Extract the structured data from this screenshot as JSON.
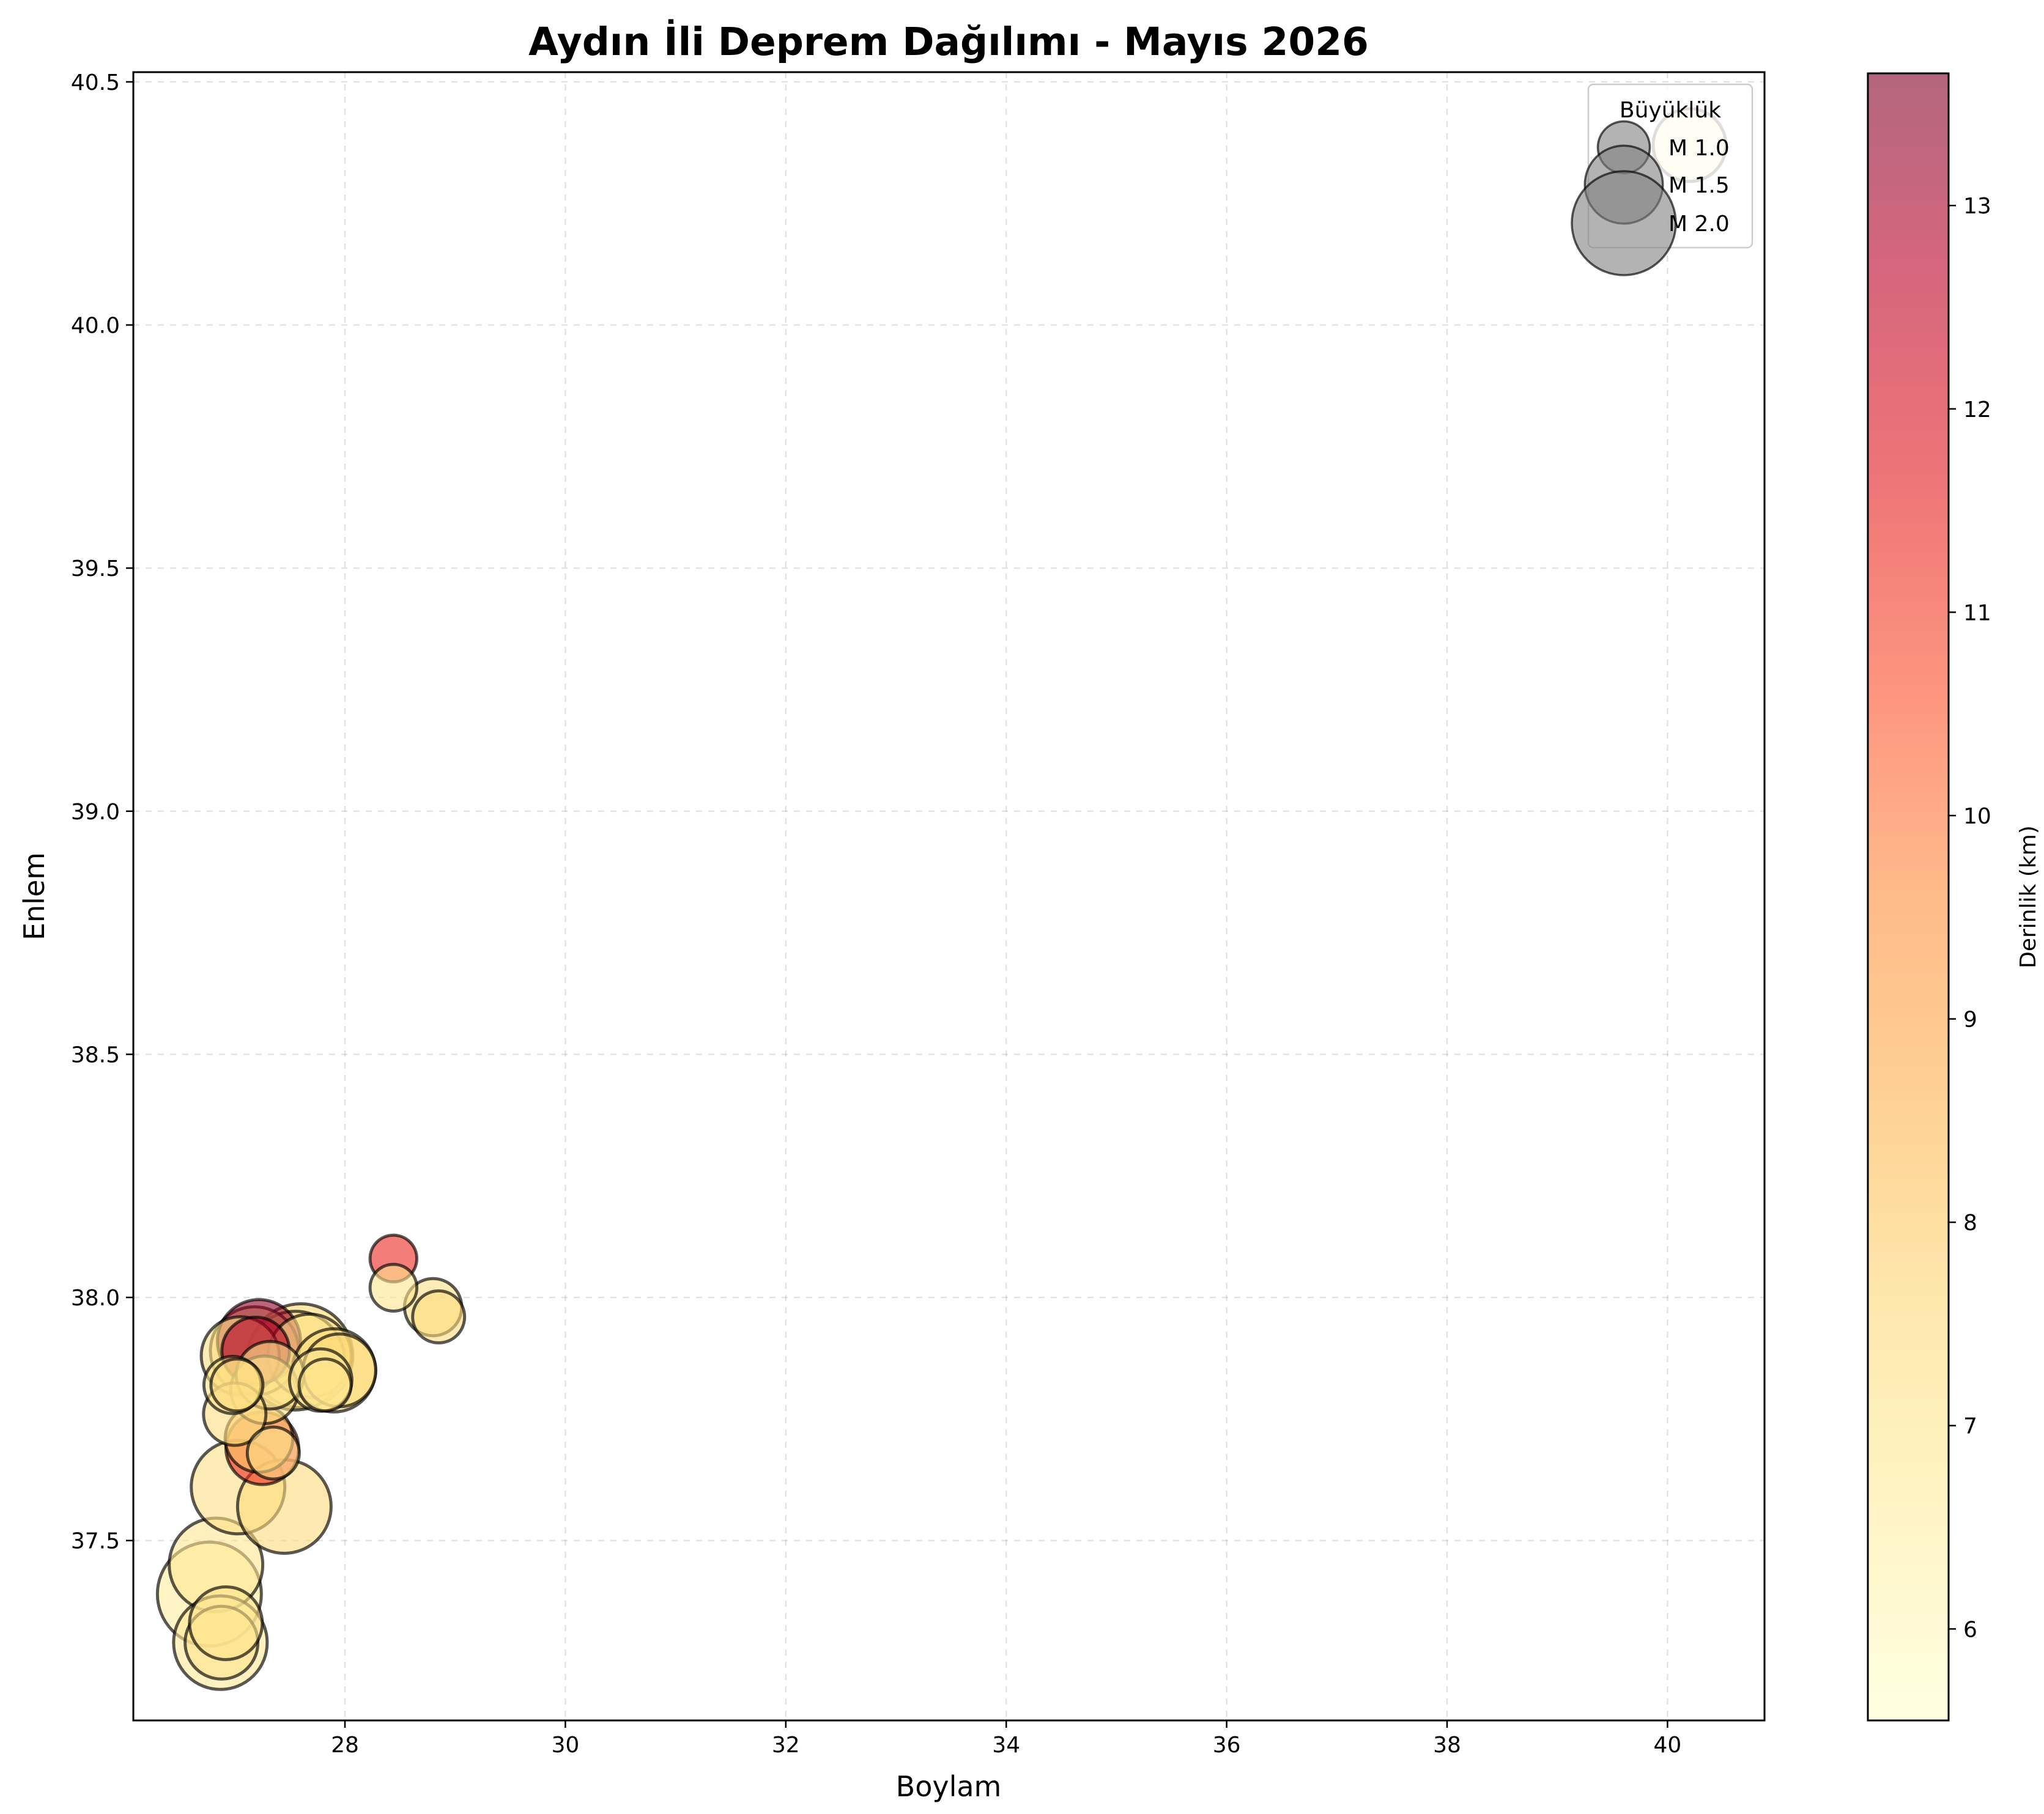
{
  "chart_data": {
    "type": "scatter",
    "title": "Aydın İli Deprem Dağılımı - Mayıs 2026",
    "xlabel": "Boylam",
    "ylabel": "Enlem",
    "xlim": [
      26.08,
      40.88
    ],
    "ylim": [
      37.13,
      40.52
    ],
    "xticks": [
      28,
      30,
      32,
      34,
      36,
      38,
      40
    ],
    "yticks": [
      37.5,
      38.0,
      38.5,
      39.0,
      39.5,
      40.0,
      40.5
    ],
    "xtick_labels": [
      "28",
      "30",
      "32",
      "34",
      "36",
      "38",
      "40"
    ],
    "ytick_labels": [
      "37.5",
      "38.0",
      "38.5",
      "39.0",
      "39.5",
      "40.0",
      "40.5"
    ],
    "grid": true,
    "colorbar": {
      "label": "Derinlik (km)",
      "range": [
        5.55,
        13.65
      ],
      "ticks": [
        6,
        7,
        8,
        9,
        10,
        11,
        12,
        13
      ],
      "tick_labels": [
        "6",
        "7",
        "8",
        "9",
        "10",
        "11",
        "12",
        "13"
      ],
      "colormap": "YlOrRd",
      "alpha": 0.6
    },
    "legend": {
      "title": "Büyüklük",
      "position": "top-right",
      "entries": [
        {
          "label": "M 1.0",
          "magnitude": 1.0
        },
        {
          "label": "M 1.5",
          "magnitude": 1.5
        },
        {
          "label": "M 2.0",
          "magnitude": 2.0
        }
      ]
    },
    "points": [
      {
        "lon": 40.2,
        "lat": 40.37,
        "mag": 1.4,
        "depth": 6.5
      },
      {
        "lon": 26.77,
        "lat": 37.39,
        "mag": 2.0,
        "depth": 6.6
      },
      {
        "lon": 26.83,
        "lat": 37.45,
        "mag": 1.8,
        "depth": 6.9
      },
      {
        "lon": 26.87,
        "lat": 37.29,
        "mag": 1.8,
        "depth": 6.8
      },
      {
        "lon": 26.88,
        "lat": 37.29,
        "mag": 1.4,
        "depth": 7.0
      },
      {
        "lon": 26.92,
        "lat": 37.33,
        "mag": 1.4,
        "depth": 7.0
      },
      {
        "lon": 27.03,
        "lat": 37.61,
        "mag": 1.8,
        "depth": 7.2
      },
      {
        "lon": 27.45,
        "lat": 37.57,
        "mag": 1.8,
        "depth": 7.4
      },
      {
        "lon": 27.0,
        "lat": 37.76,
        "mag": 1.2,
        "depth": 7.3
      },
      {
        "lon": 27.22,
        "lat": 37.71,
        "mag": 1.3,
        "depth": 8.0
      },
      {
        "lon": 27.25,
        "lat": 37.69,
        "mag": 1.4,
        "depth": 11.3
      },
      {
        "lon": 27.35,
        "lat": 37.68,
        "mag": 1.0,
        "depth": 7.1
      },
      {
        "lon": 26.98,
        "lat": 37.82,
        "mag": 1.1,
        "depth": 7.0
      },
      {
        "lon": 27.02,
        "lat": 37.82,
        "mag": 1.0,
        "depth": 7.4
      },
      {
        "lon": 27.05,
        "lat": 37.88,
        "mag": 1.5,
        "depth": 7.2
      },
      {
        "lon": 27.18,
        "lat": 37.89,
        "mag": 1.7,
        "depth": 7.5
      },
      {
        "lon": 27.22,
        "lat": 37.91,
        "mag": 1.6,
        "depth": 13.4
      },
      {
        "lon": 27.19,
        "lat": 37.89,
        "mag": 1.3,
        "depth": 12.8
      },
      {
        "lon": 27.27,
        "lat": 37.81,
        "mag": 1.3,
        "depth": 7.2
      },
      {
        "lon": 27.32,
        "lat": 37.84,
        "mag": 1.3,
        "depth": 7.0
      },
      {
        "lon": 27.55,
        "lat": 37.87,
        "mag": 1.9,
        "depth": 7.4
      },
      {
        "lon": 27.6,
        "lat": 37.88,
        "mag": 2.0,
        "depth": 7.6
      },
      {
        "lon": 27.68,
        "lat": 37.88,
        "mag": 1.6,
        "depth": 7.0
      },
      {
        "lon": 27.78,
        "lat": 37.83,
        "mag": 1.2,
        "depth": 6.8
      },
      {
        "lon": 27.82,
        "lat": 37.82,
        "mag": 1.0,
        "depth": 7.0
      },
      {
        "lon": 27.9,
        "lat": 37.85,
        "mag": 1.6,
        "depth": 7.4
      },
      {
        "lon": 27.95,
        "lat": 37.85,
        "mag": 1.4,
        "depth": 7.6
      },
      {
        "lon": 28.44,
        "lat": 38.08,
        "mag": 0.9,
        "depth": 11.4
      },
      {
        "lon": 28.44,
        "lat": 38.02,
        "mag": 0.9,
        "depth": 7.0
      },
      {
        "lon": 28.8,
        "lat": 37.98,
        "mag": 1.1,
        "depth": 7.2
      },
      {
        "lon": 28.85,
        "lat": 37.96,
        "mag": 1.0,
        "depth": 7.4
      }
    ]
  }
}
